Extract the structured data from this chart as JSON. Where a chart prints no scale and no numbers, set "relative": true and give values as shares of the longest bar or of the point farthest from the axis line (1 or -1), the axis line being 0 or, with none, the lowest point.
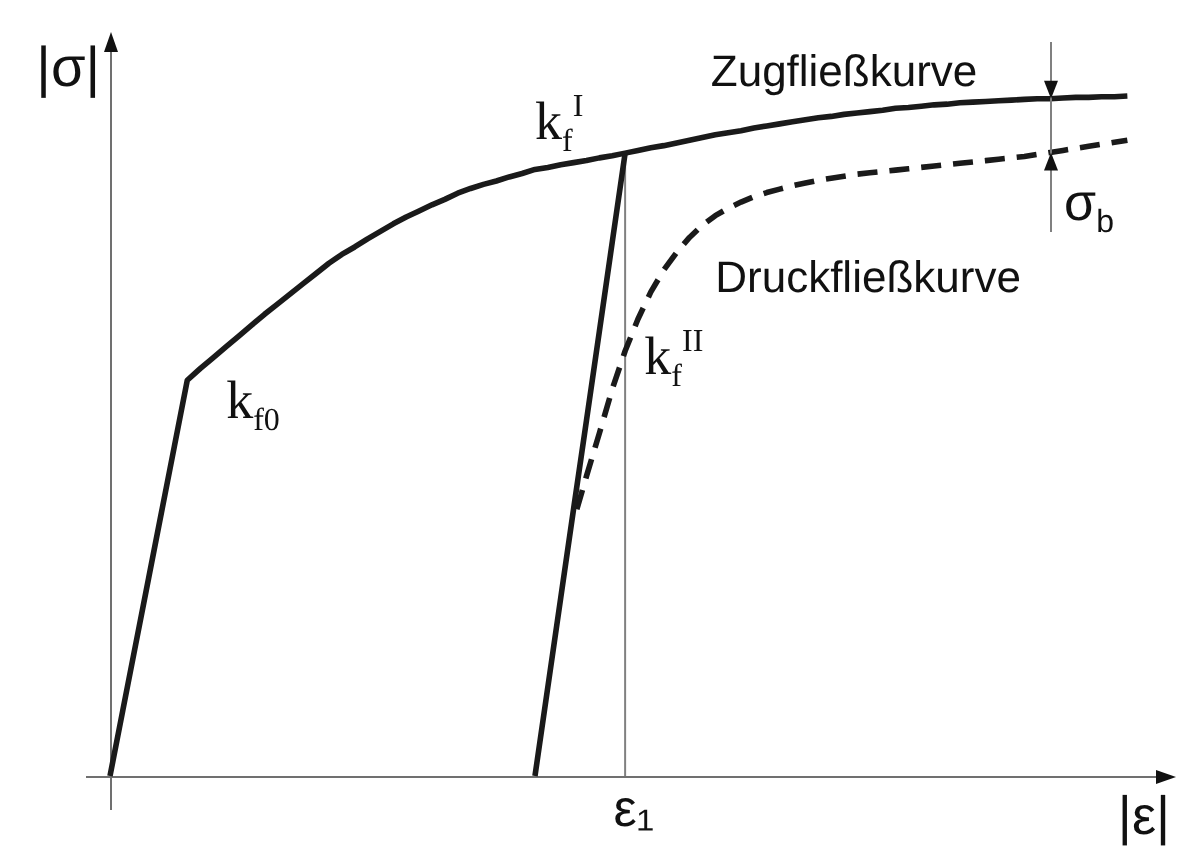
{
  "chart_data": {
    "type": "line",
    "relative": true,
    "xlabel": "|ε|",
    "ylabel": "|σ|",
    "tick_labels": false,
    "line_style": "solid",
    "categories": [
      null,
      null,
      null,
      null,
      null,
      null,
      null,
      null,
      null,
      null,
      null,
      null,
      null,
      null,
      null,
      null,
      null,
      null,
      null,
      null,
      null,
      null,
      null,
      null,
      null,
      null,
      null,
      null,
      null,
      null,
      null,
      null,
      null,
      null,
      null,
      null,
      null,
      null,
      null,
      null,
      null,
      null,
      null,
      null,
      null,
      null,
      null,
      null,
      null,
      null,
      null,
      null,
      null,
      null,
      null,
      null,
      null,
      null,
      null,
      null,
      null,
      null,
      null,
      null,
      null,
      null,
      null,
      null,
      null,
      null,
      null,
      null,
      null,
      null,
      null,
      null,
      null,
      null,
      null,
      null,
      null,
      null,
      null
    ],
    "series": [
      {
        "name": "Zugfließkurve",
        "color": "#1a1a1a",
        "values": [
          0,
          0.097,
          0.194,
          0.291,
          0.388,
          0.485,
          0.582,
          0.599,
          0.615,
          0.631,
          0.647,
          0.663,
          0.679,
          0.694,
          0.709,
          0.724,
          0.739,
          0.754,
          0.767,
          0.778,
          0.79,
          0.801,
          0.812,
          0.822,
          0.831,
          0.84,
          0.848,
          0.857,
          0.864,
          0.87,
          0.875,
          0.881,
          0.886,
          0.892,
          0.895,
          0.899,
          0.902,
          0.905,
          0.909,
          0.912,
          0.916,
          0.92,
          0.924,
          0.927,
          0.931,
          0.935,
          0.939,
          0.943,
          0.946,
          0.949,
          0.953,
          0.956,
          0.959,
          0.962,
          0.965,
          0.968,
          0.97,
          0.973,
          0.975,
          0.977,
          0.979,
          0.982,
          0.983,
          0.985,
          0.987,
          0.988,
          0.99,
          0.991,
          0.992,
          0.993,
          0.994,
          0.995,
          0.996,
          0.996,
          0.997,
          0.998,
          0.998,
          0.999,
          0.999,
          1,
          null,
          null,
          null
        ]
      },
      {
        "color": "#1a1a1a",
        "values": [
          null,
          null,
          null,
          null,
          null,
          null,
          null,
          null,
          null,
          null,
          null,
          null,
          null,
          null,
          null,
          null,
          null,
          null,
          null,
          null,
          null,
          null,
          null,
          null,
          null,
          null,
          null,
          null,
          null,
          null,
          null,
          null,
          null,
          0,
          0.131,
          0.262,
          0.393,
          0.523,
          0.654,
          0.785,
          0.916,
          null,
          null,
          null,
          null,
          null,
          null,
          null,
          null,
          null,
          null,
          null,
          null,
          null,
          null,
          null,
          null,
          null,
          null,
          null,
          null,
          null,
          null,
          null,
          null,
          null,
          null,
          null,
          null,
          null,
          null,
          null,
          null,
          null,
          null,
          null,
          null,
          null,
          null,
          null,
          null,
          null,
          null
        ]
      },
      {
        "name": "Druckfließkurve",
        "color": "#1a1a1a",
        "line_style": "dashed",
        "values": [
          null,
          null,
          null,
          null,
          null,
          null,
          null,
          null,
          null,
          null,
          null,
          null,
          null,
          null,
          null,
          null,
          null,
          null,
          null,
          null,
          null,
          null,
          null,
          null,
          null,
          null,
          null,
          null,
          null,
          null,
          null,
          null,
          null,
          null,
          null,
          null,
          0.376,
          0.441,
          0.504,
          0.569,
          0.625,
          0.672,
          0.712,
          0.744,
          0.77,
          0.792,
          0.81,
          0.824,
          0.835,
          0.844,
          0.852,
          0.858,
          0.863,
          0.868,
          0.872,
          0.876,
          0.879,
          0.882,
          0.885,
          0.887,
          0.889,
          0.891,
          0.893,
          0.895,
          0.897,
          0.899,
          0.901,
          0.903,
          0.905,
          0.907,
          0.909,
          0.911,
          0.914,
          0.917,
          0.92,
          0.923,
          0.926,
          0.929,
          0.932,
          0.935,
          null,
          null,
          null
        ]
      }
    ],
    "annotations": [
      "k$_{f0}$",
      {
        "text": "k$_{f}$$^{I}$",
        "y": 0.916
      },
      "k$_{f}$$^{II}$",
      {
        "text": "σ$_{b}$",
        "y": 0.917
      },
      "ε₁"
    ]
  }
}
